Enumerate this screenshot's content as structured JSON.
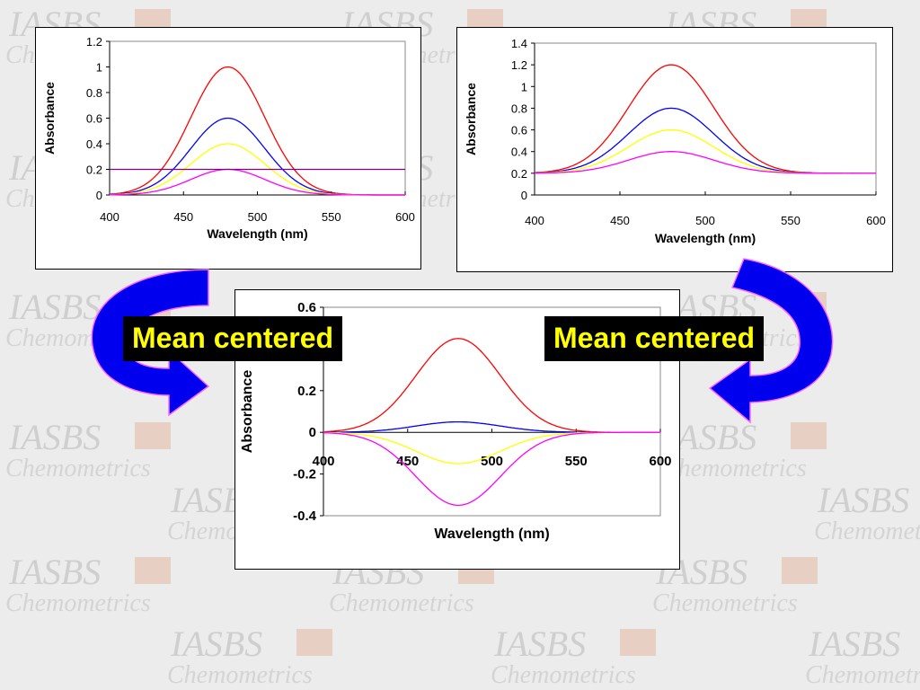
{
  "watermark": {
    "line1": "IASBS",
    "line2": "Chemometrics"
  },
  "callouts": {
    "left": "Mean centered",
    "right": "Mean centered"
  },
  "colors": {
    "red": "#ff0000",
    "blue": "#0000ff",
    "yellow": "#ffff00",
    "magenta": "#ff00ff",
    "purple": "#800080",
    "arrow": "#0000ee",
    "arrow_outline": "#ff66ff"
  },
  "chart_data": [
    {
      "type": "line",
      "xlabel": "Wavelength  (nm)",
      "ylabel": "Absorbance",
      "xlim": [
        400,
        600
      ],
      "ylim": [
        0,
        1.2
      ],
      "xticks": [
        "400",
        "450",
        "500",
        "550",
        "600"
      ],
      "yticks": [
        "0",
        "0.2",
        "0.4",
        "0.6",
        "0.8",
        "1",
        "1.2"
      ],
      "series": [
        {
          "color": "#ff0000",
          "peak_x": 480,
          "peak": 1.0,
          "width": 25,
          "offset": 0
        },
        {
          "color": "#0000ff",
          "peak_x": 480,
          "peak": 0.6,
          "width": 25,
          "offset": 0
        },
        {
          "color": "#ffff00",
          "peak_x": 480,
          "peak": 0.4,
          "width": 25,
          "offset": 0
        },
        {
          "color": "#ff00ff",
          "peak_x": 480,
          "peak": 0.2,
          "width": 25,
          "offset": 0
        },
        {
          "color": "#800080",
          "peak_x": 480,
          "peak": 0.0,
          "width": 25,
          "offset": 0.2
        }
      ]
    },
    {
      "type": "line",
      "xlabel": "Wavelength  (nm)",
      "ylabel": "Absorbance",
      "xlim": [
        400,
        600
      ],
      "ylim": [
        0,
        1.4
      ],
      "xticks": [
        "400",
        "450",
        "500",
        "550",
        "600"
      ],
      "yticks": [
        "0",
        "0.2",
        "0.4",
        "0.6",
        "0.8",
        "1",
        "1.2",
        "1.4"
      ],
      "series": [
        {
          "color": "#ff0000",
          "peak_x": 480,
          "peak": 1.0,
          "width": 25,
          "offset": 0.2
        },
        {
          "color": "#0000ff",
          "peak_x": 480,
          "peak": 0.6,
          "width": 25,
          "offset": 0.2
        },
        {
          "color": "#ffff00",
          "peak_x": 480,
          "peak": 0.4,
          "width": 25,
          "offset": 0.2
        },
        {
          "color": "#ff00ff",
          "peak_x": 480,
          "peak": 0.2,
          "width": 25,
          "offset": 0.2
        }
      ]
    },
    {
      "type": "line",
      "xlabel": "Wavelength  (nm)",
      "ylabel": "Absorbance",
      "xlim": [
        400,
        600
      ],
      "ylim": [
        -0.4,
        0.6
      ],
      "xticks": [
        "400",
        "450",
        "500",
        "550",
        "600"
      ],
      "yticks": [
        "-0.4",
        "-0.2",
        "0",
        "0.2",
        "0.4",
        "0.6"
      ],
      "series": [
        {
          "color": "#ff0000",
          "peak_x": 480,
          "peak": 0.45,
          "width": 25,
          "offset": 0
        },
        {
          "color": "#0000ff",
          "peak_x": 480,
          "peak": 0.05,
          "width": 25,
          "offset": 0
        },
        {
          "color": "#ffff00",
          "peak_x": 480,
          "peak": -0.15,
          "width": 25,
          "offset": 0
        },
        {
          "color": "#ff00ff",
          "peak_x": 480,
          "peak": -0.35,
          "width": 25,
          "offset": 0
        }
      ]
    }
  ]
}
